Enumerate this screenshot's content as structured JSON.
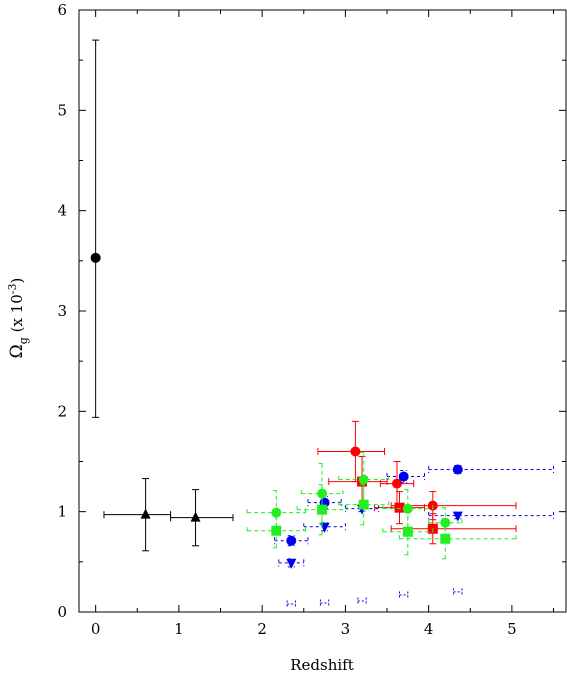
{
  "chart_data": {
    "type": "scatter",
    "title": "",
    "xlabel": "Redshift",
    "ylabel": {
      "omega": "Ω",
      "sub": "g",
      "pre": " (x 10",
      "sup": "-3",
      "post": ")"
    },
    "xlim": [
      -0.2,
      5.65
    ],
    "ylim": [
      0,
      6
    ],
    "x_ticks": [
      0,
      1,
      2,
      3,
      4,
      5
    ],
    "y_ticks": [
      0,
      1,
      2,
      3,
      4,
      5,
      6
    ],
    "grid": false,
    "legend": "none",
    "series": [
      {
        "marker": "circle",
        "color": "#000000",
        "dash": "",
        "points": [
          {
            "x": 0.0,
            "y": 3.53,
            "xerr": [
              0,
              0
            ],
            "yerr": [
              1.59,
              2.17
            ]
          }
        ]
      },
      {
        "marker": "triangle-up",
        "color": "#000000",
        "dash": "",
        "points": [
          {
            "x": 0.6,
            "y": 0.97,
            "xerr": [
              0.5,
              0.3
            ],
            "yerr": [
              0.36,
              0.36
            ]
          },
          {
            "x": 1.2,
            "y": 0.94,
            "xerr": [
              0.3,
              0.45
            ],
            "yerr": [
              0.28,
              0.28
            ]
          }
        ]
      },
      {
        "marker": "circle",
        "color": "#ff0000",
        "dash": "",
        "points": [
          {
            "x": 3.12,
            "y": 1.6,
            "xerr": [
              0.45,
              0.35
            ],
            "yerr": [
              0.3,
              0.3
            ]
          },
          {
            "x": 3.62,
            "y": 1.28,
            "xerr": [
              0.2,
              0.2
            ],
            "yerr": [
              0.22,
              0.22
            ]
          },
          {
            "x": 4.05,
            "y": 1.06,
            "xerr": [
              0.5,
              1.0
            ],
            "yerr": [
              0.14,
              0.14
            ]
          }
        ]
      },
      {
        "marker": "square",
        "color": "#ff0000",
        "dash": "",
        "points": [
          {
            "x": 3.2,
            "y": 1.3,
            "xerr": [
              0.4,
              0.3
            ],
            "yerr": [
              0.25,
              0.25
            ]
          },
          {
            "x": 3.65,
            "y": 1.04,
            "xerr": [
              0.3,
              0.3
            ],
            "yerr": [
              0.16,
              0.16
            ]
          },
          {
            "x": 4.05,
            "y": 0.83,
            "xerr": [
              0.5,
              1.0
            ],
            "yerr": [
              0.15,
              0.15
            ]
          }
        ]
      },
      {
        "marker": "circle",
        "color": "#0000ee",
        "dash": "3,3",
        "points": [
          {
            "x": 2.35,
            "y": 0.71,
            "xerr": [
              0.2,
              0.2
            ],
            "yerr": [
              0.05,
              0.05
            ]
          },
          {
            "x": 2.75,
            "y": 1.09,
            "xerr": [
              0.2,
              0.2
            ],
            "yerr": [
              0.06,
              0.06
            ]
          },
          {
            "x": 3.7,
            "y": 1.35,
            "xerr": [
              0.2,
              0.25
            ],
            "yerr": [
              0.06,
              0.06
            ]
          },
          {
            "x": 4.35,
            "y": 1.42,
            "xerr": [
              0.35,
              1.15
            ],
            "yerr": [
              0.04,
              0.04
            ]
          }
        ]
      },
      {
        "marker": "triangle-down",
        "color": "#0000ee",
        "dash": "3,3",
        "points": [
          {
            "x": 2.35,
            "y": 0.49,
            "xerr": [
              0.15,
              0.15
            ],
            "yerr": [
              0.04,
              0.04
            ]
          },
          {
            "x": 2.75,
            "y": 0.85,
            "xerr": [
              0.25,
              0.25
            ],
            "yerr": [
              0.04,
              0.04
            ]
          },
          {
            "x": 3.2,
            "y": 1.03,
            "xerr": [
              0.2,
              0.2
            ],
            "yerr": [
              0.03,
              0.03
            ]
          },
          {
            "x": 4.35,
            "y": 0.96,
            "xerr": [
              0.35,
              1.15
            ],
            "yerr": [
              0.03,
              0.03
            ]
          }
        ]
      },
      {
        "marker": "circle",
        "color": "#22ee22",
        "dash": "4,3",
        "points": [
          {
            "x": 2.17,
            "y": 0.99,
            "xerr": [
              0.35,
              0.35
            ],
            "yerr": [
              0.22,
              0.22
            ]
          },
          {
            "x": 2.72,
            "y": 1.18,
            "xerr": [
              0.25,
              0.25
            ],
            "yerr": [
              0.3,
              0.3
            ]
          },
          {
            "x": 3.22,
            "y": 1.32,
            "xerr": [
              0.3,
              0.3
            ],
            "yerr": [
              0.27,
              0.27
            ]
          },
          {
            "x": 3.75,
            "y": 1.03,
            "xerr": [
              0.3,
              0.3
            ],
            "yerr": [
              0.19,
              0.19
            ]
          },
          {
            "x": 4.2,
            "y": 0.89,
            "xerr": [
              0.2,
              0.2
            ],
            "yerr": [
              0.15,
              0.15
            ]
          }
        ]
      },
      {
        "marker": "square",
        "color": "#22ee22",
        "dash": "4,3",
        "points": [
          {
            "x": 2.17,
            "y": 0.81,
            "xerr": [
              0.35,
              0.35
            ],
            "yerr": [
              0.17,
              0.17
            ]
          },
          {
            "x": 2.72,
            "y": 1.02,
            "xerr": [
              0.3,
              0.3
            ],
            "yerr": [
              0.25,
              0.25
            ]
          },
          {
            "x": 3.22,
            "y": 1.07,
            "xerr": [
              0.3,
              0.3
            ],
            "yerr": [
              0.2,
              0.2
            ]
          },
          {
            "x": 3.75,
            "y": 0.8,
            "xerr": [
              0.3,
              0.3
            ],
            "yerr": [
              0.23,
              0.23
            ]
          },
          {
            "x": 4.2,
            "y": 0.73,
            "xerr": [
              0.55,
              0.85
            ],
            "yerr": [
              0.2,
              0.2
            ]
          }
        ]
      },
      {
        "marker": "none",
        "color": "#0000ee",
        "dash": "2,2",
        "points": [
          {
            "x": 2.35,
            "y": 0.08,
            "xerr": [
              0.05,
              0.05
            ],
            "yerr": [
              0,
              0
            ]
          },
          {
            "x": 2.75,
            "y": 0.09,
            "xerr": [
              0.05,
              0.05
            ],
            "yerr": [
              0,
              0
            ]
          },
          {
            "x": 3.2,
            "y": 0.11,
            "xerr": [
              0.05,
              0.05
            ],
            "yerr": [
              0,
              0
            ]
          },
          {
            "x": 3.7,
            "y": 0.17,
            "xerr": [
              0.05,
              0.05
            ],
            "yerr": [
              0,
              0
            ]
          },
          {
            "x": 4.35,
            "y": 0.2,
            "xerr": [
              0.05,
              0.05
            ],
            "yerr": [
              0,
              0
            ]
          }
        ]
      }
    ]
  }
}
